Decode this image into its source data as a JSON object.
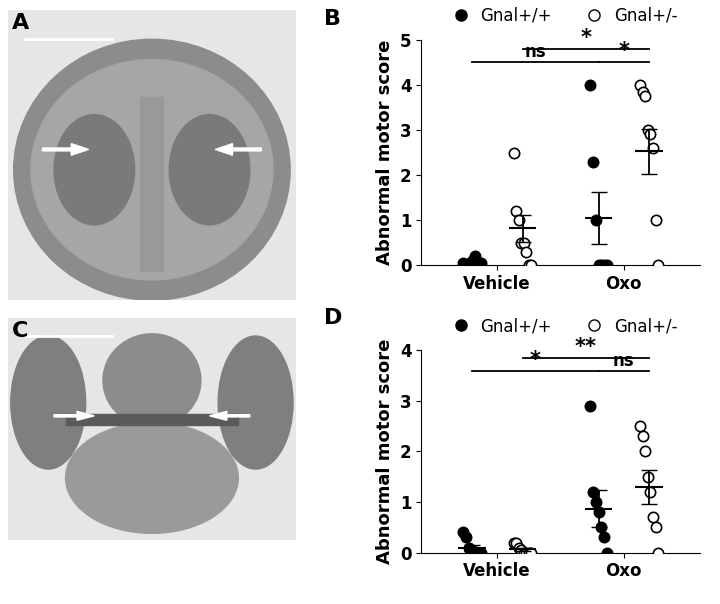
{
  "images": [
    {
      "panel_label": "A"
    },
    {
      "panel_label": "C"
    }
  ],
  "chart_data": [
    {
      "type": "scatter",
      "panel_label": "B",
      "y_label": "Abnormal motor score",
      "categories": [
        "Vehicle",
        "Oxo"
      ],
      "ylim": [
        0,
        5
      ],
      "yticks": [
        0,
        1,
        2,
        3,
        4,
        5
      ],
      "series": [
        {
          "name": "Gnal+/+",
          "color": "#000000",
          "marker": "filled",
          "values": [
            [
              0.05,
              0,
              0,
              0.1,
              0.2,
              0,
              0.05
            ],
            [
              4.0,
              2.3,
              1.0,
              0,
              0,
              0,
              0
            ]
          ],
          "mean": [
            0.07,
            1.05
          ],
          "sem": [
            0.03,
            0.58
          ]
        },
        {
          "name": "Gnal+/-",
          "color": "#000000",
          "marker": "open",
          "values": [
            [
              2.5,
              1.2,
              1.0,
              0.5,
              0.5,
              0.3,
              0,
              0
            ],
            [
              4.0,
              3.85,
              3.75,
              3.0,
              2.9,
              2.6,
              1.0,
              0
            ]
          ],
          "mean": [
            0.82,
            2.53
          ],
          "sem": [
            0.3,
            0.5
          ]
        }
      ],
      "annotations": [
        {
          "text": "ns",
          "from": [
            0,
            0
          ],
          "to": [
            1,
            0
          ]
        },
        {
          "text": "*",
          "from": [
            0,
            1
          ],
          "to": [
            1,
            1
          ]
        },
        {
          "text": "*",
          "from": [
            1,
            0
          ],
          "to": [
            1,
            1
          ]
        }
      ]
    },
    {
      "type": "scatter",
      "panel_label": "D",
      "y_label": "Abnormal motor score",
      "categories": [
        "Vehicle",
        "Oxo"
      ],
      "ylim": [
        0,
        4
      ],
      "yticks": [
        0,
        1,
        2,
        3,
        4
      ],
      "series": [
        {
          "name": "Gnal+/+",
          "color": "#000000",
          "marker": "filled",
          "values": [
            [
              0.4,
              0.3,
              0.1,
              0.05,
              0,
              0,
              0
            ],
            [
              2.9,
              1.2,
              1.0,
              0.8,
              0.5,
              0.3,
              0
            ]
          ],
          "mean": [
            0.1,
            0.87
          ],
          "sem": [
            0.06,
            0.37
          ]
        },
        {
          "name": "Gnal+/-",
          "color": "#000000",
          "marker": "open",
          "values": [
            [
              0.2,
              0.2,
              0.1,
              0.05,
              0,
              0,
              0,
              0
            ],
            [
              2.5,
              2.3,
              2.0,
              1.5,
              1.2,
              0.7,
              0.5,
              0
            ]
          ],
          "mean": [
            0.07,
            1.3
          ],
          "sem": [
            0.03,
            0.33
          ]
        }
      ],
      "annotations": [
        {
          "text": "*",
          "from": [
            0,
            0
          ],
          "to": [
            1,
            0
          ]
        },
        {
          "text": "**",
          "from": [
            0,
            1
          ],
          "to": [
            1,
            1
          ]
        },
        {
          "text": "ns",
          "from": [
            1,
            0
          ],
          "to": [
            1,
            1
          ]
        }
      ]
    }
  ]
}
